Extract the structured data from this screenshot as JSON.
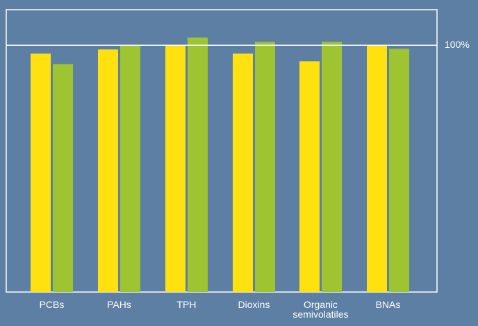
{
  "chart_data": {
    "type": "bar",
    "categories": [
      "PCBs",
      "PAHs",
      "TPH",
      "Dioxins",
      "Organic\nsemivolatiles",
      "BNAs"
    ],
    "series": [
      {
        "values": [
          96.6,
          98.3,
          100,
          96.6,
          93.5,
          100
        ]
      },
      {
        "values": [
          92.4,
          100,
          103.1,
          101.4,
          101.4,
          98.6
        ]
      }
    ],
    "reference_line": {
      "value": 100,
      "label": "100%"
    },
    "ylim": [
      0,
      114.4
    ],
    "grid": false,
    "legend": "none",
    "colors": {
      "background": "#5c7fa3",
      "series": [
        "#ffe10f",
        "#9ec431"
      ],
      "frame": "#ffffff",
      "text": "#ffffff"
    }
  }
}
